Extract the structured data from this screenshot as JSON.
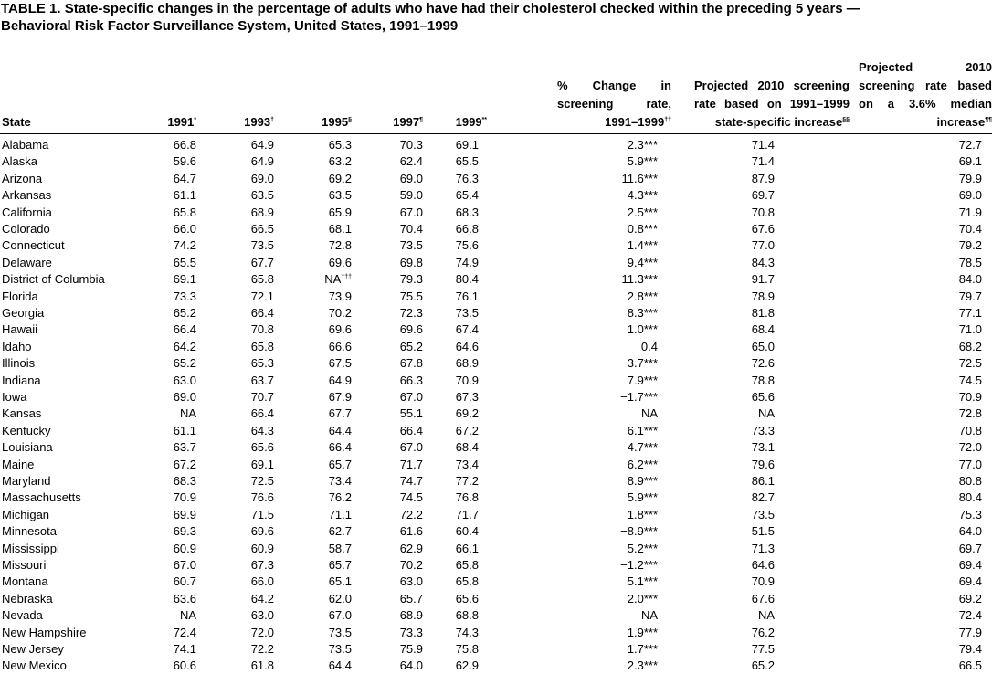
{
  "title": "TABLE 1. State-specific changes in the percentage of adults who have had their cholesterol checked within the preceding 5 years — Behavioral Risk Factor Surveillance System, United States, 1991–1999",
  "table": {
    "columns": [
      {
        "text": "State"
      },
      {
        "text": "1991",
        "note": "*"
      },
      {
        "text": "1993",
        "note": "†"
      },
      {
        "text": "1995",
        "note": "§"
      },
      {
        "text": "1997",
        "note": "¶"
      },
      {
        "text": "1999",
        "note": "**"
      },
      {
        "text": "% Change in screening rate, 1991–1999",
        "note": "††"
      },
      {
        "text": "Projected 2010 screening rate based on 1991–1999 state-specific increase",
        "note": "§§"
      },
      {
        "text": "Projected 2010 screening rate based on a 3.6% median increase",
        "note": "¶¶"
      }
    ],
    "rows": [
      [
        "Alabama",
        "66.8",
        "64.9",
        "65.3",
        "70.3",
        "69.1",
        "2.3***",
        "71.4",
        "72.7"
      ],
      [
        "Alaska",
        "59.6",
        "64.9",
        "63.2",
        "62.4",
        "65.5",
        "5.9***",
        "71.4",
        "69.1"
      ],
      [
        "Arizona",
        "64.7",
        "69.0",
        "69.2",
        "69.0",
        "76.3",
        "11.6***",
        "87.9",
        "79.9"
      ],
      [
        "Arkansas",
        "61.1",
        "63.5",
        "63.5",
        "59.0",
        "65.4",
        "4.3***",
        "69.7",
        "69.0"
      ],
      [
        "California",
        "65.8",
        "68.9",
        "65.9",
        "67.0",
        "68.3",
        "2.5***",
        "70.8",
        "71.9"
      ],
      [
        "Colorado",
        "66.0",
        "66.5",
        "68.1",
        "70.4",
        "66.8",
        "0.8***",
        "67.6",
        "70.4"
      ],
      [
        "Connecticut",
        "74.2",
        "73.5",
        "72.8",
        "73.5",
        "75.6",
        "1.4***",
        "77.0",
        "79.2"
      ],
      [
        "Delaware",
        "65.5",
        "67.7",
        "69.6",
        "69.8",
        "74.9",
        "9.4***",
        "84.3",
        "78.5"
      ],
      [
        "District of Columbia",
        "69.1",
        "65.8",
        {
          "text": "NA",
          "note": "†††"
        },
        "79.3",
        "80.4",
        "11.3***",
        "91.7",
        "84.0"
      ],
      [
        "Florida",
        "73.3",
        "72.1",
        "73.9",
        "75.5",
        "76.1",
        "2.8***",
        "78.9",
        "79.7"
      ],
      [
        "Georgia",
        "65.2",
        "66.4",
        "70.2",
        "72.3",
        "73.5",
        "8.3***",
        "81.8",
        "77.1"
      ],
      [
        "Hawaii",
        "66.4",
        "70.8",
        "69.6",
        "69.6",
        "67.4",
        "1.0***",
        "68.4",
        "71.0"
      ],
      [
        "Idaho",
        "64.2",
        "65.8",
        "66.6",
        "65.2",
        "64.6",
        "0.4",
        "65.0",
        "68.2"
      ],
      [
        "Illinois",
        "65.2",
        "65.3",
        "67.5",
        "67.8",
        "68.9",
        "3.7***",
        "72.6",
        "72.5"
      ],
      [
        "Indiana",
        "63.0",
        "63.7",
        "64.9",
        "66.3",
        "70.9",
        "7.9***",
        "78.8",
        "74.5"
      ],
      [
        "Iowa",
        "69.0",
        "70.7",
        "67.9",
        "67.0",
        "67.3",
        "−1.7***",
        "65.6",
        "70.9"
      ],
      [
        "Kansas",
        "NA",
        "66.4",
        "67.7",
        "55.1",
        "69.2",
        "NA",
        "NA",
        "72.8"
      ],
      [
        "Kentucky",
        "61.1",
        "64.3",
        "64.4",
        "66.4",
        "67.2",
        "6.1***",
        "73.3",
        "70.8"
      ],
      [
        "Louisiana",
        "63.7",
        "65.6",
        "66.4",
        "67.0",
        "68.4",
        "4.7***",
        "73.1",
        "72.0"
      ],
      [
        "Maine",
        "67.2",
        "69.1",
        "65.7",
        "71.7",
        "73.4",
        "6.2***",
        "79.6",
        "77.0"
      ],
      [
        "Maryland",
        "68.3",
        "72.5",
        "73.4",
        "74.7",
        "77.2",
        "8.9***",
        "86.1",
        "80.8"
      ],
      [
        "Massachusetts",
        "70.9",
        "76.6",
        "76.2",
        "74.5",
        "76.8",
        "5.9***",
        "82.7",
        "80.4"
      ],
      [
        "Michigan",
        "69.9",
        "71.5",
        "71.1",
        "72.2",
        "71.7",
        "1.8***",
        "73.5",
        "75.3"
      ],
      [
        "Minnesota",
        "69.3",
        "69.6",
        "62.7",
        "61.6",
        "60.4",
        "−8.9***",
        "51.5",
        "64.0"
      ],
      [
        "Mississippi",
        "60.9",
        "60.9",
        "58.7",
        "62.9",
        "66.1",
        "5.2***",
        "71.3",
        "69.7"
      ],
      [
        "Missouri",
        "67.0",
        "67.3",
        "65.7",
        "70.2",
        "65.8",
        "−1.2***",
        "64.6",
        "69.4"
      ],
      [
        "Montana",
        "60.7",
        "66.0",
        "65.1",
        "63.0",
        "65.8",
        "5.1***",
        "70.9",
        "69.4"
      ],
      [
        "Nebraska",
        "63.6",
        "64.2",
        "62.0",
        "65.7",
        "65.6",
        "2.0***",
        "67.6",
        "69.2"
      ],
      [
        "Nevada",
        "NA",
        "63.0",
        "67.0",
        "68.9",
        "68.8",
        "NA",
        "NA",
        "72.4"
      ],
      [
        "New Hampshire",
        "72.4",
        "72.0",
        "73.5",
        "73.3",
        "74.3",
        "1.9***",
        "76.2",
        "77.9"
      ],
      [
        "New Jersey",
        "74.1",
        "72.2",
        "73.5",
        "75.9",
        "75.8",
        "1.7***",
        "77.5",
        "79.4"
      ],
      [
        "New Mexico",
        "60.6",
        "61.8",
        "64.4",
        "64.0",
        "62.9",
        "2.3***",
        "65.2",
        "66.5"
      ]
    ]
  }
}
